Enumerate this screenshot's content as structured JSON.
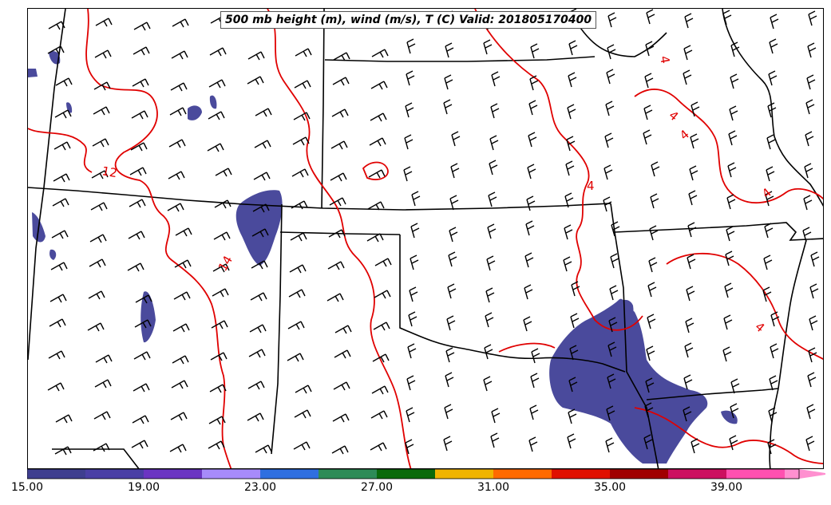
{
  "map": {
    "title": "500 mb height (m), wind (m/s), T (C) Valid: 201805170400",
    "contour_labels": [
      "12",
      "14",
      "4",
      "4",
      "4",
      "4",
      "4",
      "4"
    ],
    "colors": {
      "temperature_contour": "#e00000",
      "state_borders": "#000000",
      "shaded_area": "#4a4a9c"
    }
  },
  "colorbar": {
    "tick_labels": [
      "15.00",
      "19.00",
      "23.00",
      "27.00",
      "31.00",
      "35.00",
      "39.00"
    ],
    "colors": [
      "#3e3e8f",
      "#4a3fa5",
      "#6b35c2",
      "#a78bfa",
      "#2f6fe0",
      "#2e8b57",
      "#0a6a0a",
      "#f0b400",
      "#ff6a00",
      "#e01000",
      "#a00000",
      "#cc1060",
      "#ff50b0",
      "#ff90d0"
    ]
  }
}
